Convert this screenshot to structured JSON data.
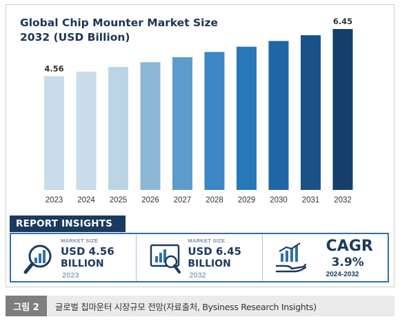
{
  "chart_data": {
    "type": "bar",
    "title_line1": "Global Chip Mounter Market Size",
    "title_line2": "2032 (USD Billion)",
    "categories": [
      "2023",
      "2024",
      "2025",
      "2026",
      "2027",
      "2028",
      "2029",
      "2030",
      "2031",
      "2032"
    ],
    "values": [
      4.56,
      4.74,
      4.93,
      5.12,
      5.32,
      5.53,
      5.74,
      5.97,
      6.2,
      6.45
    ],
    "data_labels": {
      "2023": "4.56",
      "2032": "6.45"
    },
    "colors": [
      "#c9dcea",
      "#c9dcea",
      "#bcd5e6",
      "#8bb8d6",
      "#5d9cca",
      "#3c87c4",
      "#2678b9",
      "#1f66a5",
      "#1a5187",
      "#143f6b"
    ],
    "ylim": [
      0,
      6.45
    ],
    "grid": false,
    "legend": "none"
  },
  "insights": {
    "header": "REPORT INSIGHTS",
    "panels": [
      {
        "small": "MARKET SIZE",
        "line1": "USD 4.56",
        "line2": "BILLION",
        "year": "2023",
        "icon": "magnifier-chart-icon"
      },
      {
        "small": "MARKET SIZE",
        "line1": "USD 6.45",
        "line2": "BILLION",
        "year": "2032",
        "icon": "monitor-chart-icon"
      },
      {
        "big": "CAGR",
        "value": "3.9%",
        "years": "2024-2032",
        "icon": "hand-growth-chart-icon"
      }
    ],
    "accent": "#1b3a5e"
  },
  "caption": {
    "badge": "그림 2",
    "text": "글로벌 칩마운터 시장규모 전망(자료출처, Bysiness Research Insights)"
  }
}
